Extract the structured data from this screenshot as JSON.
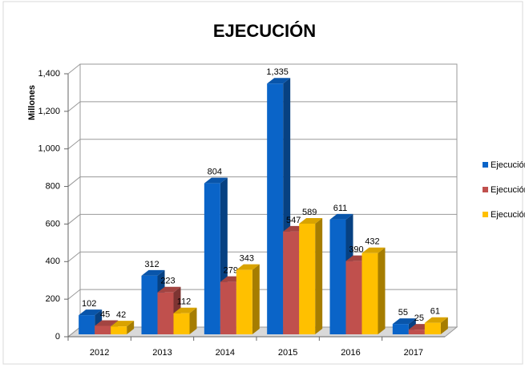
{
  "chart_data": {
    "type": "bar3d",
    "title": "EJECUCIÓN",
    "y_label": "Millones",
    "categories": [
      "2012",
      "2013",
      "2014",
      "2015",
      "2016",
      "2017"
    ],
    "series": [
      {
        "name": "Ejecución",
        "color": "#0a64c8",
        "values": [
          102,
          312,
          804,
          1335,
          611,
          55
        ],
        "value_labels": [
          "102",
          "312",
          "804",
          "1,335",
          "611",
          "55"
        ]
      },
      {
        "name": "Ejecución",
        "color": "#c0504d",
        "values": [
          45,
          223,
          279,
          547,
          390,
          25
        ]
      },
      {
        "name": "Ejecución",
        "color": "#ffc000",
        "values": [
          42,
          112,
          343,
          589,
          432,
          61
        ]
      }
    ],
    "ylim": [
      0,
      1400
    ],
    "yticks": [
      0,
      200,
      400,
      600,
      800,
      {
        "value": 1000,
        "label": "1,000"
      },
      {
        "value": 1200,
        "label": "1,200"
      },
      {
        "value": 1400,
        "label": "1,400"
      }
    ],
    "grid": true,
    "legend": "right"
  }
}
